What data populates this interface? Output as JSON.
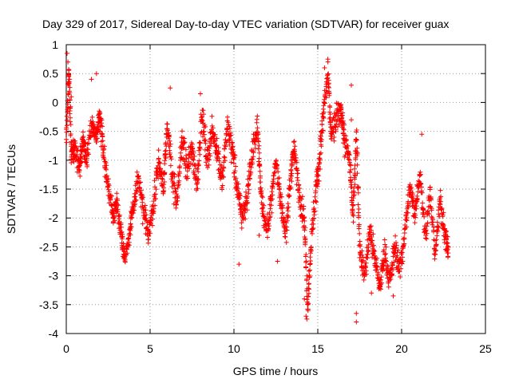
{
  "chart_data": {
    "type": "scatter",
    "title": "Day 329 of 2017, Sidereal Day-to-day VTEC variation (SDTVAR) for receiver guax",
    "xlabel": "GPS time / hours",
    "ylabel": "SDTVAR / TECUs",
    "xlim": [
      0,
      25
    ],
    "ylim": [
      -4,
      1
    ],
    "xticks": [
      "0",
      "5",
      "10",
      "15",
      "20",
      "25"
    ],
    "yticks": [
      "-4",
      "-3.5",
      "-3",
      "-2.5",
      "-2",
      "-1.5",
      "-1",
      "-0.5",
      "0",
      "0.5",
      "1"
    ],
    "grid": true,
    "marker": "+",
    "series": [
      {
        "name": "SDTVAR",
        "color": "#ff0000",
        "trace": [
          [
            0.0,
            -0.7,
            0.2
          ],
          [
            0.15,
            0.6,
            0.2
          ],
          [
            0.3,
            -0.9,
            0.25
          ],
          [
            0.5,
            -0.8,
            0.3
          ],
          [
            0.8,
            -1.1,
            0.25
          ],
          [
            1.0,
            -0.6,
            0.25
          ],
          [
            1.2,
            -1.0,
            0.3
          ],
          [
            1.5,
            -0.4,
            0.3
          ],
          [
            1.8,
            -0.6,
            0.3
          ],
          [
            2.0,
            -0.2,
            0.3
          ],
          [
            2.2,
            -0.8,
            0.35
          ],
          [
            2.5,
            -1.5,
            0.3
          ],
          [
            2.8,
            -2.0,
            0.2
          ],
          [
            3.0,
            -1.7,
            0.25
          ],
          [
            3.3,
            -2.3,
            0.25
          ],
          [
            3.5,
            -2.7,
            0.15
          ],
          [
            3.8,
            -2.2,
            0.25
          ],
          [
            4.0,
            -1.8,
            0.25
          ],
          [
            4.3,
            -1.3,
            0.3
          ],
          [
            4.6,
            -1.9,
            0.3
          ],
          [
            4.9,
            -2.3,
            0.25
          ],
          [
            5.2,
            -1.8,
            0.3
          ],
          [
            5.5,
            -1.0,
            0.35
          ],
          [
            5.8,
            -1.5,
            0.3
          ],
          [
            6.0,
            -0.4,
            0.3
          ],
          [
            6.3,
            -1.2,
            0.4
          ],
          [
            6.6,
            -1.8,
            0.3
          ],
          [
            6.9,
            -0.6,
            0.4
          ],
          [
            7.2,
            -1.2,
            0.4
          ],
          [
            7.5,
            -0.8,
            0.35
          ],
          [
            7.8,
            -1.4,
            0.4
          ],
          [
            8.1,
            -0.2,
            0.25
          ],
          [
            8.4,
            -1.0,
            0.35
          ],
          [
            8.7,
            -0.5,
            0.3
          ],
          [
            9.0,
            -0.8,
            0.3
          ],
          [
            9.3,
            -1.4,
            0.35
          ],
          [
            9.6,
            -0.4,
            0.3
          ],
          [
            9.9,
            -0.8,
            0.4
          ],
          [
            10.2,
            -1.5,
            0.3
          ],
          [
            10.5,
            -2.0,
            0.3
          ],
          [
            10.8,
            -1.6,
            0.35
          ],
          [
            11.1,
            -0.9,
            0.3
          ],
          [
            11.4,
            -0.4,
            0.25
          ],
          [
            11.6,
            -1.5,
            0.3
          ],
          [
            11.9,
            -2.2,
            0.3
          ],
          [
            12.2,
            -1.8,
            0.35
          ],
          [
            12.5,
            -1.0,
            0.15
          ],
          [
            12.8,
            -1.7,
            0.3
          ],
          [
            13.1,
            -2.3,
            0.3
          ],
          [
            13.4,
            -1.2,
            0.3
          ],
          [
            13.6,
            -0.8,
            0.2
          ],
          [
            13.9,
            -1.6,
            0.3
          ],
          [
            14.2,
            -2.0,
            0.35
          ],
          [
            14.4,
            -3.6,
            0.1
          ],
          [
            14.6,
            -2.4,
            0.3
          ],
          [
            14.9,
            -1.5,
            0.35
          ],
          [
            15.1,
            -1.0,
            0.3
          ],
          [
            15.3,
            -0.3,
            0.35
          ],
          [
            15.6,
            0.5,
            0.25
          ],
          [
            15.8,
            -0.6,
            0.35
          ],
          [
            16.1,
            -0.3,
            0.35
          ],
          [
            16.4,
            -0.1,
            0.3
          ],
          [
            16.6,
            -0.7,
            0.3
          ],
          [
            16.9,
            -1.0,
            0.3
          ],
          [
            17.1,
            -2.0,
            0.3
          ],
          [
            17.3,
            -0.5,
            0.3
          ],
          [
            17.5,
            -2.5,
            0.3
          ],
          [
            17.8,
            -3.0,
            0.3
          ],
          [
            18.1,
            -2.2,
            0.35
          ],
          [
            18.4,
            -2.7,
            0.35
          ],
          [
            18.7,
            -3.2,
            0.25
          ],
          [
            19.0,
            -2.6,
            0.35
          ],
          [
            19.3,
            -3.1,
            0.3
          ],
          [
            19.6,
            -2.5,
            0.35
          ],
          [
            19.9,
            -2.9,
            0.3
          ],
          [
            20.2,
            -2.2,
            0.35
          ],
          [
            20.5,
            -1.5,
            0.3
          ],
          [
            20.8,
            -1.9,
            0.3
          ],
          [
            21.1,
            -1.2,
            0.25
          ],
          [
            21.4,
            -2.3,
            0.3
          ],
          [
            21.7,
            -1.6,
            0.35
          ],
          [
            22.0,
            -2.6,
            0.3
          ],
          [
            22.3,
            -1.7,
            0.3
          ],
          [
            22.6,
            -2.3,
            0.3
          ],
          [
            22.8,
            -2.6,
            0.25
          ]
        ],
        "outliers": [
          [
            0.05,
            0.85
          ],
          [
            0.1,
            0.7
          ],
          [
            0.2,
            0.4
          ],
          [
            0.3,
            0.1
          ],
          [
            1.5,
            0.4
          ],
          [
            1.8,
            0.5
          ],
          [
            6.2,
            0.25
          ],
          [
            8.0,
            0.15
          ],
          [
            14.3,
            -3.7
          ],
          [
            14.35,
            -3.75
          ],
          [
            14.2,
            -3.4
          ],
          [
            17.3,
            -3.8
          ],
          [
            17.3,
            -3.65
          ],
          [
            17.0,
            0.3
          ],
          [
            17.0,
            -0.3
          ],
          [
            15.6,
            0.75
          ],
          [
            15.4,
            0.6
          ],
          [
            21.2,
            -0.55
          ],
          [
            10.3,
            -2.8
          ],
          [
            11.5,
            -2.3
          ],
          [
            12.6,
            -2.75
          ],
          [
            18.2,
            -3.3
          ],
          [
            19.5,
            -3.35
          ]
        ]
      }
    ]
  }
}
